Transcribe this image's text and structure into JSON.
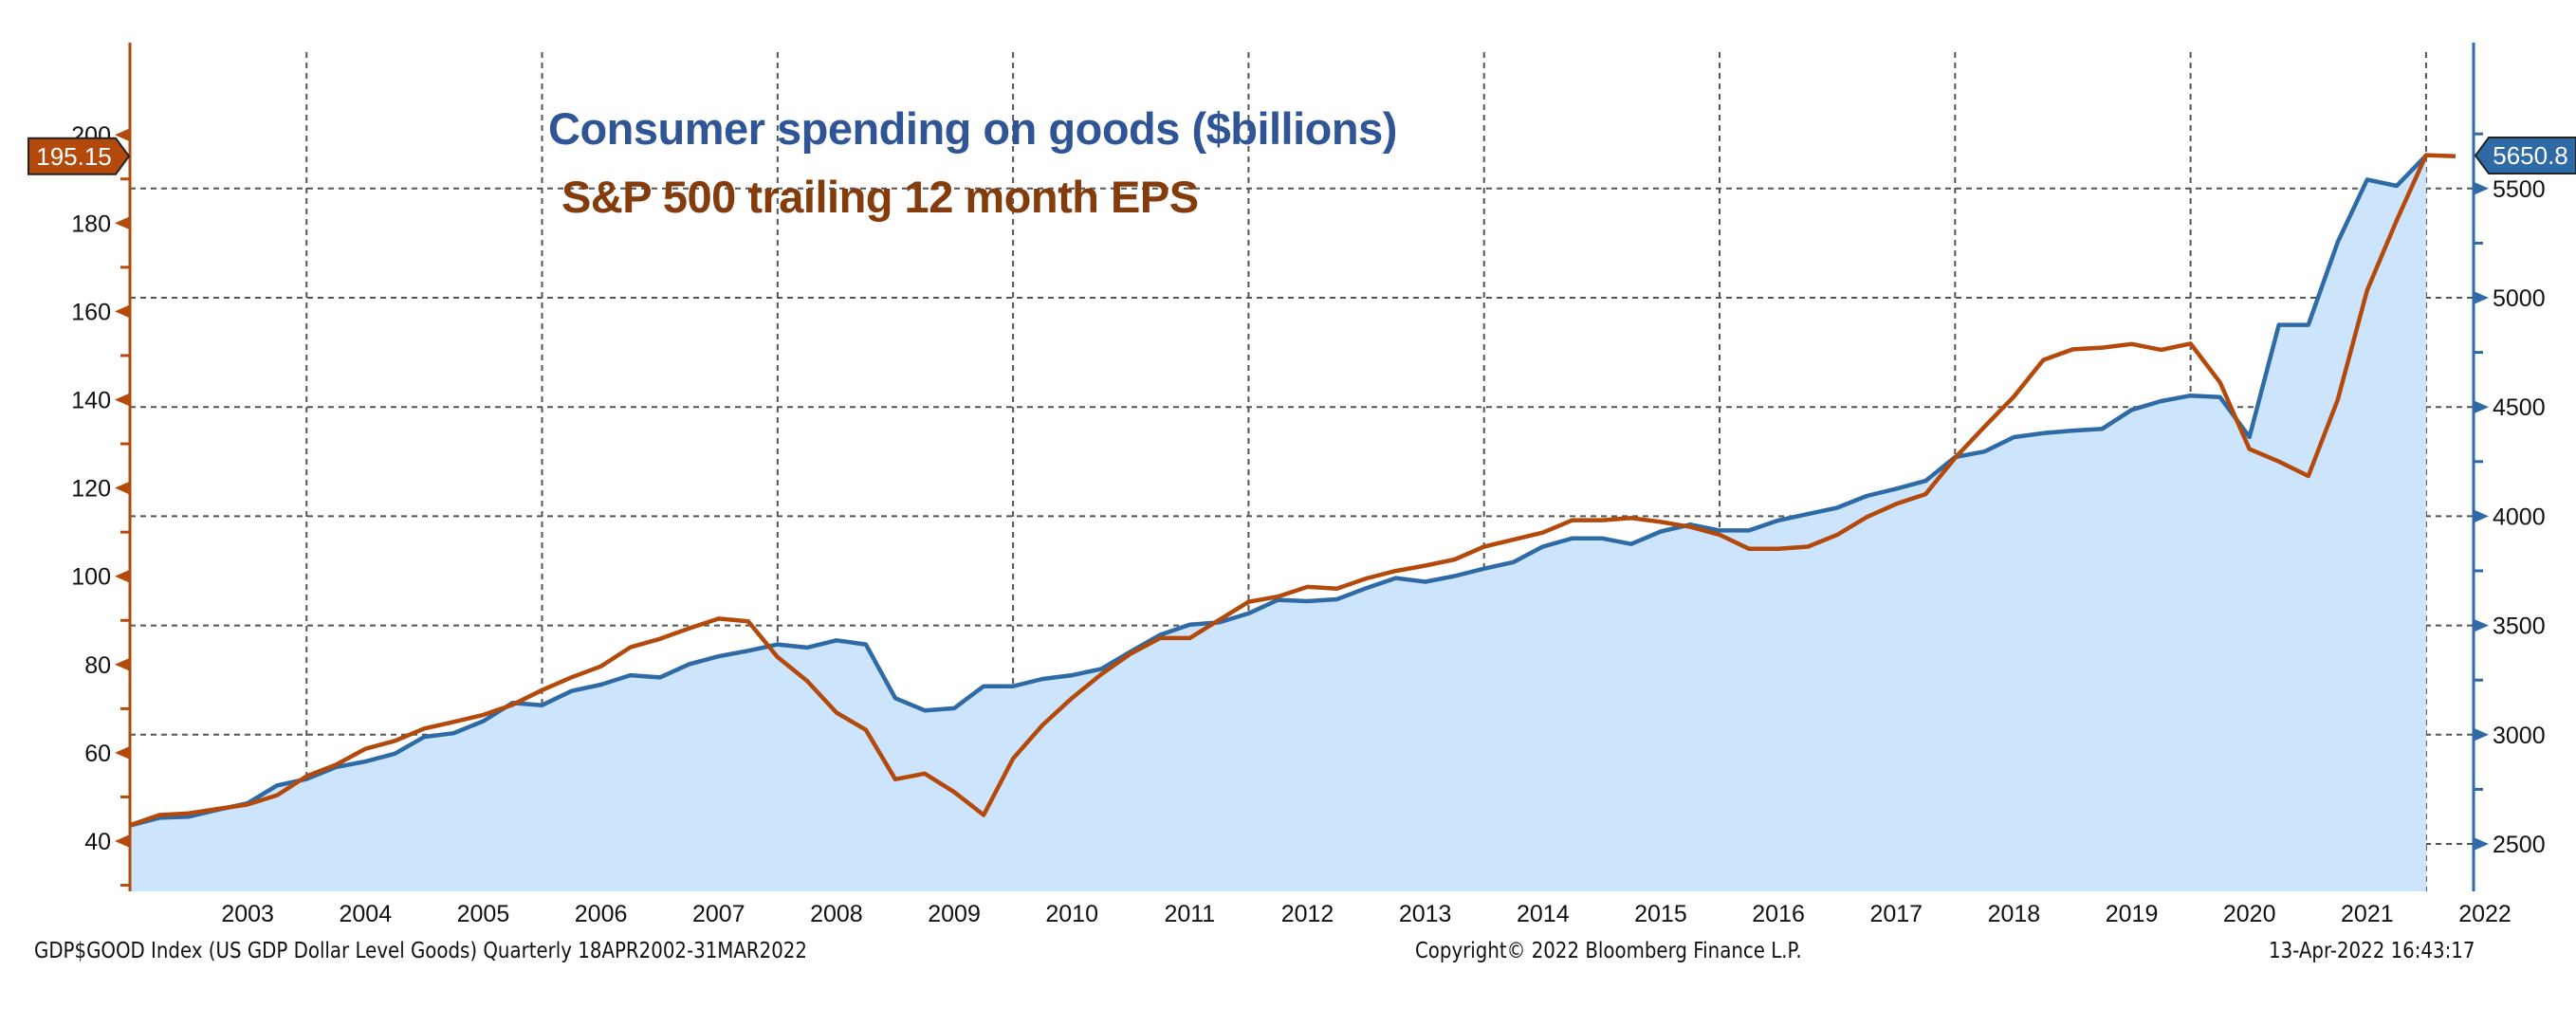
{
  "chart_data": {
    "type": "line",
    "title": "Consumer spending on goods ($billions)",
    "subtitle": "S&P 500 trailing 12 month EPS",
    "x_start": "2002 Q2",
    "frequency": "quarterly",
    "x_ticks": [
      "2003",
      "2004",
      "2005",
      "2006",
      "2007",
      "2008",
      "2009",
      "2010",
      "2011",
      "2012",
      "2013",
      "2014",
      "2015",
      "2016",
      "2017",
      "2018",
      "2019",
      "2020",
      "2021",
      "2022"
    ],
    "left_axis": {
      "ticks": [
        40,
        60,
        80,
        100,
        120,
        140,
        160,
        180,
        200
      ],
      "range": [
        29,
        211
      ],
      "color": "#b34a0c"
    },
    "right_axis": {
      "ticks": [
        2500,
        3000,
        3500,
        4000,
        4500,
        5000,
        5500
      ],
      "range": [
        2240,
        5930
      ],
      "color": "#2e6aa6"
    },
    "grid": true,
    "series": [
      {
        "name": "Consumer spending on goods ($billions)",
        "axis": "right",
        "style": "area",
        "color": "#2e6aa6",
        "fill": "#cce4fc",
        "last_value_label": "5650.8",
        "values": [
          2584,
          2620,
          2625,
          2657,
          2686,
          2768,
          2797,
          2852,
          2877,
          2913,
          2990,
          3007,
          3062,
          3146,
          3135,
          3200,
          3229,
          3272,
          3262,
          3323,
          3359,
          3384,
          3413,
          3399,
          3432,
          3413,
          3167,
          3111,
          3121,
          3222,
          3222,
          3255,
          3272,
          3301,
          3381,
          3457,
          3504,
          3514,
          3555,
          3617,
          3611,
          3620,
          3671,
          3717,
          3700,
          3726,
          3760,
          3790,
          3861,
          3899,
          3899,
          3873,
          3930,
          3962,
          3935,
          3935,
          3981,
          4010,
          4039,
          4093,
          4126,
          4162,
          4271,
          4296,
          4362,
          4380,
          4392,
          4400,
          4487,
          4527,
          4552,
          4545,
          4363,
          4876,
          4876,
          5255,
          5541,
          5512,
          5650.8
        ]
      },
      {
        "name": "S&P 500 trailing 12 month EPS",
        "axis": "left",
        "style": "line",
        "color": "#b34a0c",
        "last_value_label": "195.15",
        "values": [
          43.6,
          45.9,
          46.3,
          47.3,
          48.3,
          50.4,
          54.7,
          57.3,
          60.9,
          62.7,
          65.5,
          67.0,
          68.6,
          70.9,
          74.2,
          77.1,
          79.6,
          83.9,
          85.8,
          88.2,
          90.4,
          89.8,
          81.7,
          76.3,
          69.1,
          65.2,
          54.0,
          55.3,
          51.1,
          45.9,
          58.7,
          66.3,
          72.4,
          77.8,
          82.5,
          86.0,
          86.0,
          90.1,
          94.2,
          95.4,
          97.6,
          97.2,
          99.5,
          101.2,
          102.4,
          103.8,
          106.7,
          108.3,
          109.9,
          112.7,
          112.7,
          113.2,
          112.3,
          111.2,
          109.4,
          106.2,
          106.2,
          106.7,
          109.4,
          113.4,
          116.4,
          118.6,
          126.8,
          133.9,
          140.7,
          149.0,
          151.4,
          151.8,
          152.6,
          151.3,
          152.7,
          143.9,
          128.8,
          126.0,
          122.7,
          140.0,
          164.8,
          180.6,
          195.4,
          195.15
        ]
      }
    ]
  },
  "footer": {
    "source": "GDP$GOOD Index (US GDP Dollar Level Goods)  Quarterly 18APR2002-31MAR2022",
    "copyright": "Copyright© 2022 Bloomberg Finance L.P.",
    "timestamp": "13-Apr-2022 16:43:17"
  }
}
